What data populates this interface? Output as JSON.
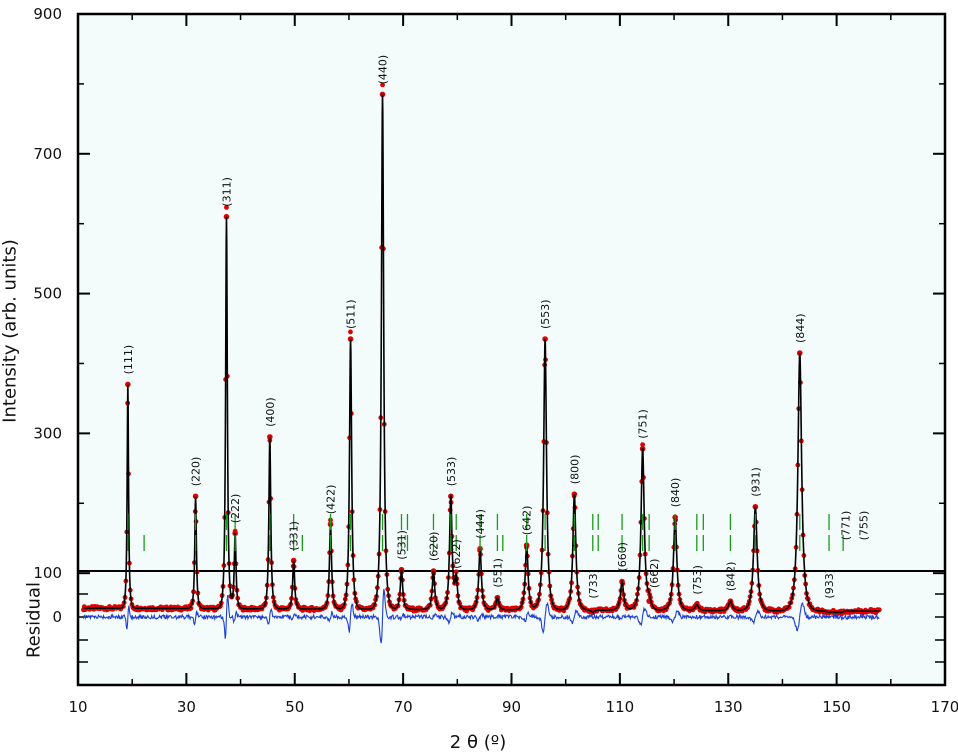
{
  "chart_data": {
    "type": "line",
    "xlabel": "2 θ  (º)",
    "ylabel": "Intensity (arb. units)",
    "residual_ylabel": "Residual",
    "xlim": [
      10,
      170
    ],
    "ylim": [
      -60,
      900
    ],
    "xticks": [
      10,
      30,
      50,
      70,
      90,
      110,
      130,
      150,
      170
    ],
    "yticks": [
      100,
      300,
      500,
      700,
      900
    ],
    "residual_ticks": [
      0
    ],
    "grid": false,
    "background": "#f3fbfb",
    "colors": {
      "observed": "#e00000",
      "calculated": "#000000",
      "bragg": "#1a9a1a",
      "residual": "#1f3fd0"
    },
    "baseline": 50,
    "peaks": [
      {
        "x": 19.2,
        "y": 370,
        "hkl": "(111)"
      },
      {
        "x": 31.7,
        "y": 210,
        "hkl": "(220)"
      },
      {
        "x": 37.4,
        "y": 610,
        "hkl": "(311)"
      },
      {
        "x": 39.0,
        "y": 157,
        "hkl": "(222)"
      },
      {
        "x": 45.4,
        "y": 295,
        "hkl": "(400)"
      },
      {
        "x": 49.8,
        "y": 118,
        "hkl": "(331)"
      },
      {
        "x": 56.6,
        "y": 170,
        "hkl": "(422)"
      },
      {
        "x": 60.3,
        "y": 435,
        "hkl": "(511)"
      },
      {
        "x": 66.2,
        "y": 785,
        "hkl": "(440)"
      },
      {
        "x": 69.7,
        "y": 105,
        "hkl": "(531)"
      },
      {
        "x": 75.6,
        "y": 103,
        "hkl": "(620)"
      },
      {
        "x": 78.8,
        "y": 210,
        "hkl": "(533)"
      },
      {
        "x": 79.8,
        "y": 92,
        "hkl": "(622)"
      },
      {
        "x": 84.2,
        "y": 135,
        "hkl": "(444)"
      },
      {
        "x": 87.4,
        "y": 65,
        "hkl": "(551)"
      },
      {
        "x": 92.8,
        "y": 140,
        "hkl": "(642)"
      },
      {
        "x": 96.2,
        "y": 435,
        "hkl": "(553)"
      },
      {
        "x": 101.6,
        "y": 213,
        "hkl": "(800)"
      },
      {
        "x": 105.0,
        "y": 44,
        "hkl": "(733)"
      },
      {
        "x": 110.4,
        "y": 88,
        "hkl": "(660)"
      },
      {
        "x": 114.2,
        "y": 278,
        "hkl": "(751)"
      },
      {
        "x": 115.4,
        "y": 60,
        "hkl": "(662)"
      },
      {
        "x": 120.2,
        "y": 180,
        "hkl": "(840)"
      },
      {
        "x": 124.2,
        "y": 55,
        "hkl": "(753)"
      },
      {
        "x": 130.4,
        "y": 60,
        "hkl": "(842)"
      },
      {
        "x": 135.0,
        "y": 195,
        "hkl": "(931)"
      },
      {
        "x": 143.2,
        "y": 415,
        "hkl": "(844)"
      },
      {
        "x": 148.6,
        "y": 44,
        "hkl": "(933)"
      },
      {
        "x": 149.8,
        "y": 44,
        "hkl": "(771)"
      },
      {
        "x": 150.8,
        "y": 44,
        "hkl": "(755)"
      }
    ],
    "bragg_row1": [
      19.2,
      31.7,
      37.4,
      39.0,
      45.4,
      49.8,
      56.6,
      60.3,
      66.2,
      69.7,
      70.8,
      75.6,
      78.8,
      79.8,
      84.2,
      87.4,
      92.8,
      96.2,
      101.6,
      105.0,
      106.0,
      110.4,
      114.2,
      115.4,
      120.2,
      124.2,
      125.4,
      130.4,
      135.0,
      143.2,
      148.6
    ],
    "bragg_row2": [
      19.2,
      22.2,
      31.7,
      37.4,
      39.0,
      45.4,
      49.8,
      51.4,
      56.6,
      60.3,
      66.2,
      69.7,
      70.8,
      75.6,
      78.8,
      79.8,
      84.2,
      87.4,
      88.4,
      92.8,
      96.2,
      101.6,
      105.0,
      106.0,
      110.4,
      114.2,
      115.4,
      120.2,
      124.2,
      125.4,
      130.4,
      135.0,
      143.2,
      148.6,
      151.2
    ]
  }
}
